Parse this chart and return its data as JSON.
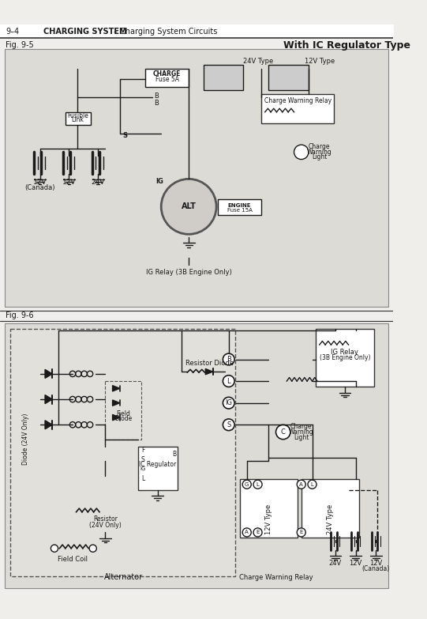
{
  "page_header_left": "9–4",
  "page_header_bold": "CHARGING SYSTEM",
  "page_header_right": "– Charging System Circuits",
  "fig1_label": "Fig. 9-5",
  "fig1_title": "With IC Regulator Type",
  "fig2_label": "Fig. 9-6",
  "bg_color": "#f0eeea",
  "diagram1_bg": "#e8e6e0",
  "diagram2_bg": "#e8e6e0",
  "line_color": "#1a1a1a",
  "text_color": "#1a1a1a",
  "header_line_color": "#333333",
  "fig_width": 5.41,
  "fig_height": 7.83,
  "dpi": 100
}
